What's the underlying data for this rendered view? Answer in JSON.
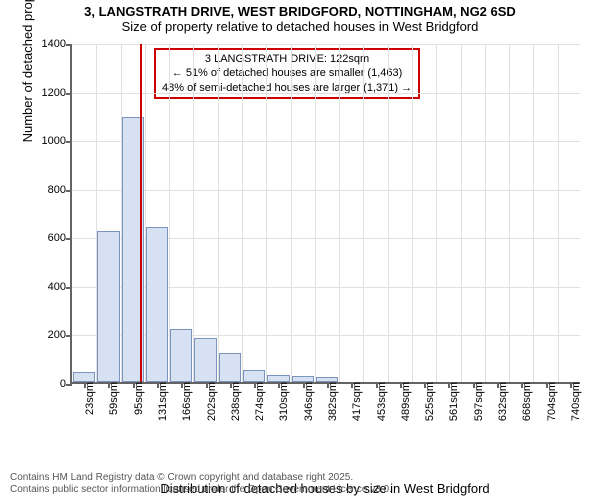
{
  "title": "3, LANGSTRATH DRIVE, WEST BRIDGFORD, NOTTINGHAM, NG2 6SD",
  "subtitle": "Size of property relative to detached houses in West Bridgford",
  "chart": {
    "type": "histogram",
    "ylabel": "Number of detached properties",
    "xlabel": "Distribution of detached houses by size in West Bridgford",
    "ylim": [
      0,
      1400
    ],
    "ytick_step": 200,
    "yticks": [
      0,
      200,
      400,
      600,
      800,
      1000,
      1200,
      1400
    ],
    "xticks": [
      "23sqm",
      "59sqm",
      "95sqm",
      "131sqm",
      "166sqm",
      "202sqm",
      "238sqm",
      "274sqm",
      "310sqm",
      "346sqm",
      "382sqm",
      "417sqm",
      "453sqm",
      "489sqm",
      "525sqm",
      "561sqm",
      "597sqm",
      "632sqm",
      "668sqm",
      "704sqm",
      "740sqm"
    ],
    "bars": [
      40,
      620,
      1090,
      640,
      220,
      180,
      120,
      50,
      30,
      25,
      20,
      0,
      0,
      0,
      0,
      0,
      0,
      0,
      0,
      0,
      0
    ],
    "bar_color": "#d6e2f3",
    "bar_border_color": "#7a94bd",
    "axis_color": "#636363",
    "grid_color": "#e0e0e0",
    "background_color": "#ffffff",
    "title_fontsize": 13,
    "label_fontsize": 13,
    "tick_fontsize": 11,
    "marker": {
      "x_index": 2.8,
      "line_color": "#cc0000",
      "box": {
        "line1": "3 LANGSTRATH DRIVE: 122sqm",
        "line2": "← 51% of detached houses are smaller (1,463)",
        "line3": "48% of semi-detached houses are larger (1,371) →",
        "border_color": "#cc0000",
        "background_color": "#ffffff"
      }
    }
  },
  "footer": {
    "line1": "Contains HM Land Registry data © Crown copyright and database right 2025.",
    "line2": "Contains public sector information licensed under the Open Government Licence v3.0."
  }
}
